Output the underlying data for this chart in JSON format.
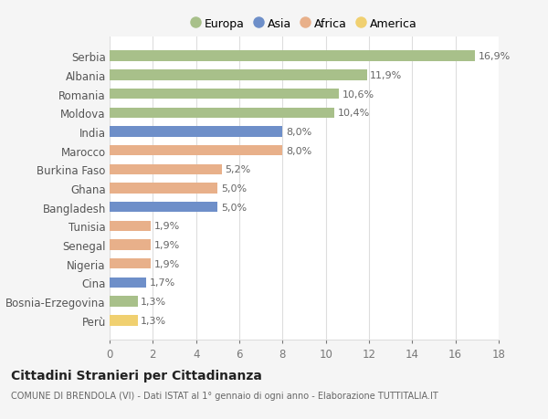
{
  "categories": [
    "Serbia",
    "Albania",
    "Romania",
    "Moldova",
    "India",
    "Marocco",
    "Burkina Faso",
    "Ghana",
    "Bangladesh",
    "Tunisia",
    "Senegal",
    "Nigeria",
    "Cina",
    "Bosnia-Erzegovina",
    "Perù"
  ],
  "values": [
    16.9,
    11.9,
    10.6,
    10.4,
    8.0,
    8.0,
    5.2,
    5.0,
    5.0,
    1.9,
    1.9,
    1.9,
    1.7,
    1.3,
    1.3
  ],
  "labels": [
    "16,9%",
    "11,9%",
    "10,6%",
    "10,4%",
    "8,0%",
    "8,0%",
    "5,2%",
    "5,0%",
    "5,0%",
    "1,9%",
    "1,9%",
    "1,9%",
    "1,7%",
    "1,3%",
    "1,3%"
  ],
  "continents": [
    "Europa",
    "Europa",
    "Europa",
    "Europa",
    "Asia",
    "Africa",
    "Africa",
    "Africa",
    "Asia",
    "Africa",
    "Africa",
    "Africa",
    "Asia",
    "Europa",
    "America"
  ],
  "colors": {
    "Europa": "#a8c08a",
    "Asia": "#6e8fc9",
    "Africa": "#e8b08a",
    "America": "#f0d070"
  },
  "legend_order": [
    "Europa",
    "Asia",
    "Africa",
    "America"
  ],
  "title": "Cittadini Stranieri per Cittadinanza",
  "subtitle": "COMUNE DI BRENDOLA (VI) - Dati ISTAT al 1° gennaio di ogni anno - Elaborazione TUTTITALIA.IT",
  "xlim": [
    0,
    18
  ],
  "xticks": [
    0,
    2,
    4,
    6,
    8,
    10,
    12,
    14,
    16,
    18
  ],
  "bg_color": "#f5f5f5",
  "bar_bg_color": "#ffffff",
  "grid_color": "#dddddd"
}
